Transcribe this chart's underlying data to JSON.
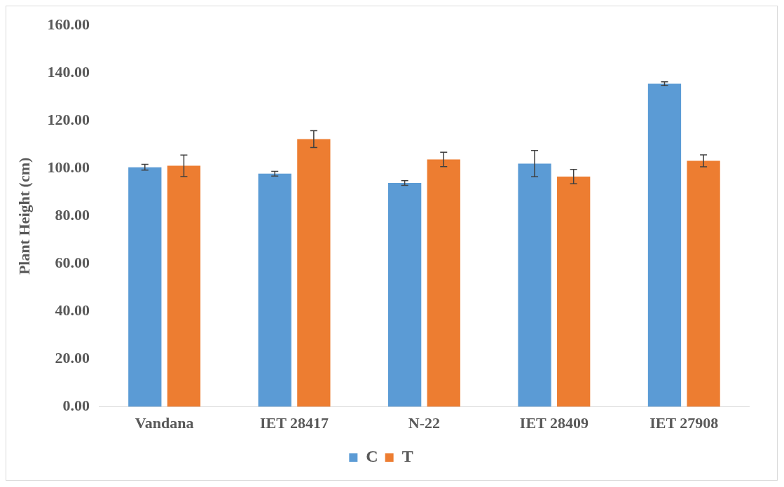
{
  "chart_data": {
    "type": "bar",
    "ylabel": "Plant Height (cm)",
    "categories": [
      "Vandana",
      "IET 28417",
      "N-22",
      "IET 28409",
      "IET 27908"
    ],
    "series": [
      {
        "name": "C",
        "color": "#5b9bd5",
        "values": [
          100.5,
          97.8,
          93.9,
          102.0,
          135.5
        ],
        "errors": [
          1.2,
          1.0,
          1.0,
          5.5,
          0.8
        ]
      },
      {
        "name": "T",
        "color": "#ed7d31",
        "values": [
          101.1,
          112.3,
          103.8,
          96.6,
          103.2
        ],
        "errors": [
          4.5,
          3.5,
          3.0,
          3.0,
          2.5
        ]
      }
    ],
    "ylim": [
      0,
      160
    ],
    "yticks": [
      {
        "value": 0,
        "label": "0.00"
      },
      {
        "value": 20,
        "label": "20.00"
      },
      {
        "value": 40,
        "label": "40.00"
      },
      {
        "value": 60,
        "label": "60.00"
      },
      {
        "value": 80,
        "label": "80.00"
      },
      {
        "value": 100,
        "label": "100.00"
      },
      {
        "value": 120,
        "label": "120.00"
      },
      {
        "value": 140,
        "label": "140.00"
      },
      {
        "value": 160,
        "label": "160.00"
      }
    ],
    "grid": false,
    "legend": "bottom"
  }
}
